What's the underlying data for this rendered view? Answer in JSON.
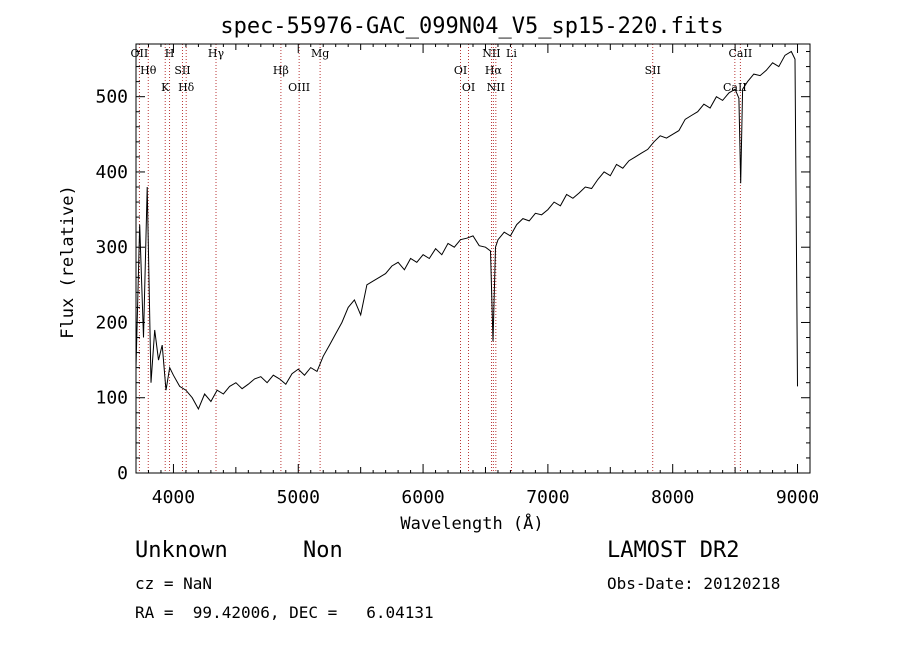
{
  "chart_data": {
    "type": "line",
    "title": "spec-55976-GAC_099N04_V5_sp15-220.fits",
    "xlabel": "Wavelength (Å)",
    "ylabel": "Flux (relative)",
    "xlim": [
      3700,
      9100
    ],
    "ylim": [
      0,
      570
    ],
    "xticks": [
      "4000",
      "5000",
      "6000",
      "7000",
      "8000",
      "9000"
    ],
    "yticks": [
      "0",
      "100",
      "200",
      "300",
      "400",
      "500"
    ],
    "grid": false,
    "series": [
      {
        "color": "#000000",
        "x": [
          3700,
          3730,
          3760,
          3790,
          3820,
          3850,
          3880,
          3910,
          3940,
          3970,
          4000,
          4050,
          4100,
          4150,
          4200,
          4250,
          4300,
          4350,
          4400,
          4450,
          4500,
          4550,
          4600,
          4650,
          4700,
          4750,
          4800,
          4850,
          4900,
          4950,
          5000,
          5050,
          5100,
          5150,
          5200,
          5250,
          5300,
          5350,
          5400,
          5450,
          5500,
          5550,
          5600,
          5650,
          5700,
          5750,
          5800,
          5850,
          5900,
          5950,
          6000,
          6050,
          6100,
          6150,
          6200,
          6250,
          6300,
          6350,
          6400,
          6450,
          6500,
          6540,
          6560,
          6580,
          6600,
          6650,
          6700,
          6750,
          6800,
          6850,
          6900,
          6950,
          7000,
          7050,
          7100,
          7150,
          7200,
          7250,
          7300,
          7350,
          7400,
          7450,
          7500,
          7550,
          7600,
          7650,
          7700,
          7750,
          7800,
          7850,
          7900,
          7950,
          8000,
          8050,
          8100,
          8150,
          8200,
          8250,
          8300,
          8350,
          8400,
          8450,
          8500,
          8530,
          8545,
          8560,
          8600,
          8650,
          8700,
          8750,
          8800,
          8850,
          8900,
          8950,
          8980,
          9000
        ],
        "y": [
          140,
          330,
          180,
          380,
          120,
          190,
          150,
          170,
          110,
          140,
          130,
          115,
          110,
          100,
          85,
          105,
          95,
          110,
          105,
          115,
          120,
          112,
          118,
          125,
          128,
          120,
          130,
          125,
          118,
          132,
          138,
          130,
          140,
          135,
          155,
          170,
          185,
          200,
          220,
          230,
          210,
          250,
          255,
          260,
          265,
          275,
          280,
          270,
          285,
          280,
          290,
          285,
          298,
          290,
          305,
          300,
          310,
          312,
          315,
          302,
          300,
          295,
          175,
          300,
          310,
          320,
          315,
          330,
          338,
          335,
          345,
          343,
          350,
          360,
          355,
          370,
          365,
          372,
          380,
          378,
          390,
          400,
          395,
          410,
          405,
          415,
          420,
          425,
          430,
          440,
          448,
          445,
          450,
          455,
          470,
          475,
          480,
          490,
          485,
          500,
          495,
          505,
          510,
          498,
          385,
          510,
          520,
          530,
          528,
          535,
          545,
          540,
          555,
          560,
          550,
          115
        ]
      }
    ],
    "line_labels": [
      {
        "name": "OII",
        "wavelength": 3727
      },
      {
        "name": "Hθ",
        "wavelength": 3798
      },
      {
        "name": "K",
        "wavelength": 3934
      },
      {
        "name": "H",
        "wavelength": 3969
      },
      {
        "name": "SII",
        "wavelength": 4072
      },
      {
        "name": "Hδ",
        "wavelength": 4102
      },
      {
        "name": "Hγ",
        "wavelength": 4341
      },
      {
        "name": "Hβ",
        "wavelength": 4861
      },
      {
        "name": "OIII",
        "wavelength": 5007
      },
      {
        "name": "Mg",
        "wavelength": 5175
      },
      {
        "name": "OI",
        "wavelength": 6300
      },
      {
        "name": "OI",
        "wavelength": 6364
      },
      {
        "name": "NII",
        "wavelength": 6548
      },
      {
        "name": "Hα",
        "wavelength": 6563
      },
      {
        "name": "NII",
        "wavelength": 6583
      },
      {
        "name": "Li",
        "wavelength": 6708
      },
      {
        "name": "SII",
        "wavelength": 7840
      },
      {
        "name": "CaII",
        "wavelength": 8498
      },
      {
        "name": "CaII",
        "wavelength": 8542
      }
    ]
  },
  "info": {
    "object_class": "Unknown",
    "object_subclass": "Non",
    "survey": "LAMOST DR2",
    "cz": "cz = NaN",
    "obs_date": "Obs-Date: 20120218",
    "coords": "RA =  99.42006, DEC =   6.04131"
  },
  "colors": {
    "line_marker": "#b22222",
    "spectrum": "#000000"
  }
}
